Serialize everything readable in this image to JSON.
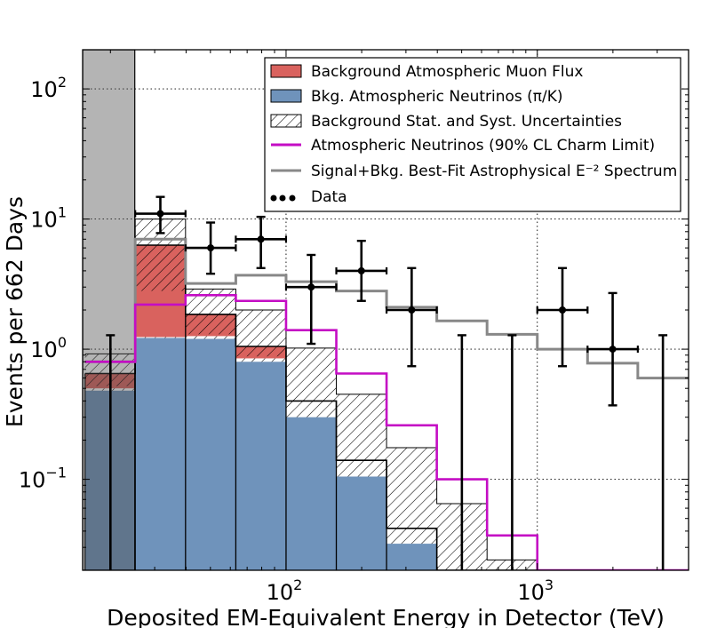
{
  "chart_data": {
    "type": "histogram",
    "xscale": "log",
    "yscale": "log",
    "xlim": [
      15.5,
      4000
    ],
    "ylim": [
      0.02,
      200
    ],
    "xlabel": "Deposited EM-Equivalent Energy in Detector (TeV)",
    "ylabel": "Events per 662 Days",
    "x_tick_labels": [
      {
        "value": 100,
        "base": "10",
        "exp": "2"
      },
      {
        "value": 1000,
        "base": "10",
        "exp": "3"
      }
    ],
    "y_tick_labels": [
      {
        "value": 100,
        "base": "10",
        "exp": "2"
      },
      {
        "value": 10,
        "base": "10",
        "exp": "1"
      },
      {
        "value": 1,
        "base": "10",
        "exp": "0"
      },
      {
        "value": 0.1,
        "base": "10",
        "exp": "−1"
      }
    ],
    "grid": true,
    "legend_position": "top-right",
    "excluded_region": [
      15.5,
      25
    ],
    "bin_edges": [
      15.85,
      25.1,
      39.8,
      63.1,
      100,
      158.5,
      251.2,
      398.1,
      631,
      1000,
      1585,
      2512,
      4000
    ],
    "series": [
      {
        "name": "Bkg. Atmospheric Neutrinos (π/K)",
        "kind": "filled",
        "color": "#6f93bb",
        "values": [
          0.48,
          1.22,
          1.2,
          0.8,
          0.3,
          0.105,
          0.032,
          0.02,
          0.02,
          0.02,
          0.02,
          0.02
        ],
        "band_top": [
          0.5,
          1.24,
          1.26,
          0.85,
          0.4,
          0.14,
          0.042,
          0.02,
          0.02,
          0.02,
          0.02,
          0.02
        ]
      },
      {
        "name": "Background Atmospheric Muon Flux",
        "kind": "filled",
        "color": "#d9625e",
        "bottom": [
          0.5,
          1.24,
          1.26,
          0.85,
          0.4,
          0.14,
          0.042,
          0.02,
          0.02,
          0.02,
          0.02,
          0.02
        ],
        "values": [
          0.65,
          6.3,
          1.85,
          1.05,
          0.4,
          0.14,
          0.042,
          0.02,
          0.02,
          0.02,
          0.02,
          0.02
        ],
        "band_bottom": [
          0.52,
          2.8,
          1.3,
          0.88,
          0.4,
          0.14,
          0.042,
          0.02,
          0.02,
          0.02,
          0.02,
          0.02
        ]
      },
      {
        "name": "Background Stat. and Syst. Uncertainties",
        "kind": "hatched",
        "bottom": [
          0.65,
          6.3,
          1.85,
          1.05,
          0.4,
          0.14,
          0.042,
          0.02,
          0.02,
          0.02,
          0.02,
          0.02
        ],
        "values": [
          0.92,
          10,
          2.9,
          2.0,
          1.02,
          0.45,
          0.175,
          0.065,
          0.024,
          0.02,
          0.02,
          0.02
        ]
      },
      {
        "name": "Atmospheric Neutrinos (90% CL Charm Limit)",
        "kind": "step",
        "color": "#c40dc4",
        "values": [
          0.8,
          2.2,
          2.6,
          2.35,
          1.4,
          0.65,
          0.26,
          0.1,
          0.037,
          0.02,
          0.02,
          0.02
        ]
      },
      {
        "name": "Signal+Bkg. Best-Fit Astrophysical E⁻² Spectrum",
        "kind": "step",
        "color": "#888888",
        "values": [
          0.8,
          7.0,
          3.2,
          3.7,
          3.3,
          2.8,
          2.1,
          1.65,
          1.3,
          1.0,
          0.78,
          0.6
        ]
      },
      {
        "name": "Data",
        "kind": "points",
        "color": "#000000",
        "points": [
          {
            "x": 20,
            "y": 0.02,
            "ylo": 0.02,
            "yhi": 1.28,
            "x0": 20,
            "x1": 20,
            "marker": false
          },
          {
            "x": 31.6,
            "y": 11,
            "ylo": 7.8,
            "yhi": 14.8,
            "x0": 25.1,
            "x1": 39.8,
            "marker": true
          },
          {
            "x": 50.1,
            "y": 6,
            "ylo": 3.8,
            "yhi": 9.4,
            "x0": 39.8,
            "x1": 63.1,
            "marker": true
          },
          {
            "x": 79.4,
            "y": 7,
            "ylo": 4.2,
            "yhi": 10.4,
            "x0": 63.1,
            "x1": 100,
            "marker": true
          },
          {
            "x": 125.9,
            "y": 3,
            "ylo": 1.1,
            "yhi": 5.3,
            "x0": 100,
            "x1": 158.5,
            "marker": true
          },
          {
            "x": 199.5,
            "y": 4,
            "ylo": 2.35,
            "yhi": 6.8,
            "x0": 158.5,
            "x1": 251.2,
            "marker": true
          },
          {
            "x": 316.2,
            "y": 2,
            "ylo": 0.74,
            "yhi": 4.2,
            "x0": 251.2,
            "x1": 398.1,
            "marker": true
          },
          {
            "x": 501,
            "y": 0.02,
            "ylo": 0.02,
            "yhi": 1.28,
            "x0": 501,
            "x1": 501,
            "marker": false
          },
          {
            "x": 794,
            "y": 0.02,
            "ylo": 0.02,
            "yhi": 1.28,
            "x0": 794,
            "x1": 794,
            "marker": false
          },
          {
            "x": 1259,
            "y": 2,
            "ylo": 0.74,
            "yhi": 4.2,
            "x0": 1000,
            "x1": 1585,
            "marker": true
          },
          {
            "x": 1995,
            "y": 1,
            "ylo": 0.37,
            "yhi": 2.7,
            "x0": 1585,
            "x1": 2512,
            "marker": true
          },
          {
            "x": 3162,
            "y": 0.02,
            "ylo": 0.02,
            "yhi": 1.28,
            "x0": 3162,
            "x1": 3162,
            "marker": false
          }
        ]
      }
    ],
    "legend": [
      {
        "key": "muon",
        "label": "Background Atmospheric Muon Flux"
      },
      {
        "key": "nu",
        "label": "Bkg. Atmospheric Neutrinos (π/K)"
      },
      {
        "key": "unc",
        "label": "Background Stat. and Syst. Uncertainties"
      },
      {
        "key": "charm",
        "label": "Atmospheric Neutrinos (90% CL Charm Limit)"
      },
      {
        "key": "fit",
        "label": "Signal+Bkg. Best-Fit Astrophysical E⁻² Spectrum"
      },
      {
        "key": "data",
        "label": "Data"
      }
    ]
  }
}
